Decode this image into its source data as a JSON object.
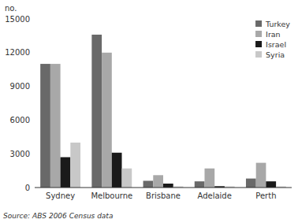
{
  "chart_data": {
    "type": "bar",
    "y_label": "no.",
    "annotations": [
      "Source: ABS 2006 Census data"
    ],
    "categories": [
      "Sydney",
      "Melbourne",
      "Brisbane",
      "Adelaide",
      "Perth"
    ],
    "series": [
      {
        "name": "Turkey",
        "color": "#696969",
        "values": [
          11000,
          13600,
          600,
          550,
          800
        ]
      },
      {
        "name": "Iran",
        "color": "#a8a8a8",
        "values": [
          11000,
          12000,
          1100,
          1700,
          2200
        ]
      },
      {
        "name": "Israel",
        "color": "#1a1a1a",
        "values": [
          2700,
          3100,
          350,
          120,
          550
        ]
      },
      {
        "name": "Syria",
        "color": "#c8c8c8",
        "values": [
          4000,
          1700,
          100,
          100,
          100
        ]
      }
    ],
    "ylim": [
      0,
      15000
    ],
    "yticks": [
      0,
      3000,
      6000,
      9000,
      12000,
      15000
    ],
    "grid": false,
    "legend": "upper right"
  }
}
